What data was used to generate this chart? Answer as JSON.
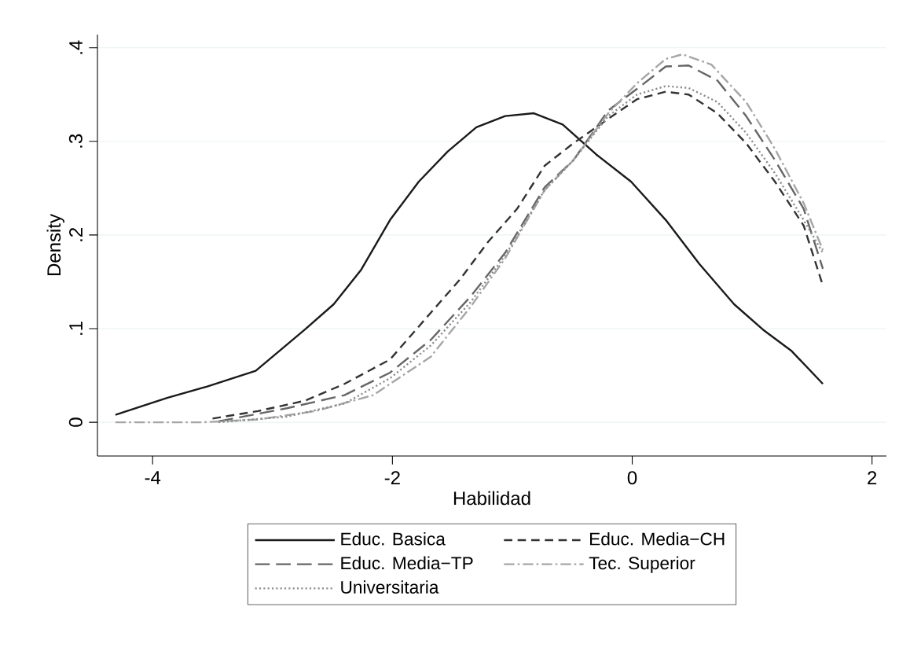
{
  "chart_data": {
    "type": "line",
    "xlabel": "Habilidad",
    "ylabel": "Density",
    "xlim": [
      -4.46,
      2.12
    ],
    "ylim": [
      -0.036,
      0.414
    ],
    "xticks": [
      -4,
      -2,
      0,
      2
    ],
    "yticks": [
      0,
      {
        "value": 0.1,
        "label": ".1"
      },
      {
        "value": 0.2,
        "label": ".2"
      },
      {
        "value": 0.3,
        "label": ".3"
      },
      {
        "value": 0.4,
        "label": ".4"
      }
    ],
    "grid": "y",
    "legend": "bottom",
    "marker": "none",
    "series": [
      {
        "name": "Educ. Basica",
        "color": "#1a1a1a",
        "line_style": "solid",
        "x": [
          -4.31,
          -3.88,
          -3.55,
          -3.14,
          -2.73,
          -2.49,
          -2.26,
          -2.02,
          -1.78,
          -1.54,
          -1.3,
          -1.06,
          -0.82,
          -0.58,
          -0.3,
          -0.01,
          0.28,
          0.56,
          0.85,
          1.09,
          1.33,
          1.59
        ],
        "values": [
          0.008,
          0.026,
          0.038,
          0.055,
          0.099,
          0.126,
          0.163,
          0.216,
          0.257,
          0.289,
          0.315,
          0.327,
          0.33,
          0.318,
          0.286,
          0.257,
          0.216,
          0.169,
          0.126,
          0.099,
          0.076,
          0.041
        ]
      },
      {
        "name": "Educ. Media−CH",
        "color": "#333333",
        "line_style": "dashed",
        "x": [
          -3.5,
          -3.12,
          -2.73,
          -2.4,
          -2.02,
          -1.68,
          -1.44,
          -1.2,
          -0.96,
          -0.73,
          -0.49,
          -0.2,
          0.04,
          0.28,
          0.47,
          0.71,
          0.95,
          1.19,
          1.43,
          1.59
        ],
        "values": [
          0.004,
          0.012,
          0.023,
          0.041,
          0.067,
          0.117,
          0.152,
          0.193,
          0.228,
          0.274,
          0.298,
          0.324,
          0.345,
          0.353,
          0.35,
          0.33,
          0.298,
          0.257,
          0.21,
          0.146
        ]
      },
      {
        "name": "Educ. Media−TP",
        "color": "#666666",
        "line_style": "dashed",
        "x": [
          -3.45,
          -2.88,
          -2.4,
          -2.02,
          -1.68,
          -1.35,
          -1.06,
          -0.73,
          -0.49,
          -0.2,
          0.04,
          0.28,
          0.47,
          0.71,
          0.95,
          1.19,
          1.43,
          1.59
        ],
        "values": [
          0.001,
          0.015,
          0.029,
          0.053,
          0.088,
          0.134,
          0.181,
          0.251,
          0.28,
          0.333,
          0.356,
          0.38,
          0.381,
          0.365,
          0.327,
          0.28,
          0.228,
          0.164
        ]
      },
      {
        "name": "Tec. Superior",
        "color": "#a6a6a6",
        "line_style": "dashed",
        "x": [
          -4.31,
          -3.59,
          -3.12,
          -2.64,
          -2.16,
          -1.68,
          -1.35,
          -1.06,
          -0.73,
          -0.49,
          -0.2,
          0.04,
          0.28,
          0.42,
          0.66,
          0.95,
          1.19,
          1.43,
          1.59
        ],
        "values": [
          0.0,
          0.0,
          0.003,
          0.012,
          0.029,
          0.07,
          0.123,
          0.175,
          0.248,
          0.28,
          0.33,
          0.362,
          0.388,
          0.393,
          0.382,
          0.342,
          0.292,
          0.234,
          0.184
        ]
      },
      {
        "name": "Universitaria",
        "color": "#8c8c8c",
        "line_style": "dotted",
        "x": [
          -3.45,
          -2.88,
          -2.4,
          -2.02,
          -1.68,
          -1.35,
          -1.06,
          -0.73,
          -0.49,
          -0.2,
          0.04,
          0.28,
          0.47,
          0.71,
          0.95,
          1.19,
          1.43,
          1.59
        ],
        "values": [
          0.0,
          0.006,
          0.02,
          0.047,
          0.082,
          0.128,
          0.178,
          0.248,
          0.28,
          0.327,
          0.35,
          0.359,
          0.357,
          0.342,
          0.309,
          0.266,
          0.216,
          0.181
        ]
      }
    ]
  }
}
